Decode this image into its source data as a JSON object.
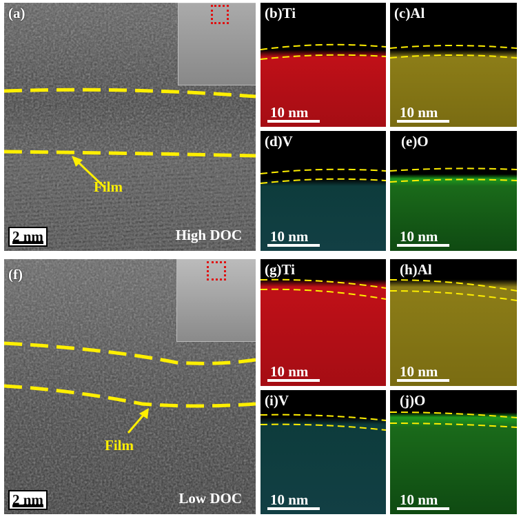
{
  "top": {
    "main": {
      "label": "(a)",
      "scale": "2 nm",
      "condition": "High DOC",
      "film": "Film"
    },
    "maps": [
      {
        "label": "(b)Ti",
        "scale": "10 nm",
        "color": "#d0141c"
      },
      {
        "label": "(c)Al",
        "scale": "10 nm",
        "color": "#c8b62a"
      },
      {
        "label": "(d)V",
        "scale": "10 nm",
        "color": "#2fc2c2"
      },
      {
        "label": "(e)O",
        "scale": "10 nm",
        "color": "#28b828"
      }
    ]
  },
  "bottom": {
    "main": {
      "label": "(f)",
      "scale": "2 nm",
      "condition": "Low DOC",
      "film": "Film"
    },
    "maps": [
      {
        "label": "(g)Ti",
        "scale": "10 nm",
        "color": "#d0141c"
      },
      {
        "label": "(h)Al",
        "scale": "10 nm",
        "color": "#c8b62a"
      },
      {
        "label": "(i)V",
        "scale": "10 nm",
        "color": "#2fc2c2"
      },
      {
        "label": "(j)O",
        "scale": "10 nm",
        "color": "#28b828"
      }
    ]
  },
  "film_line_color": "#ffef00",
  "marker_color": "#e01010"
}
